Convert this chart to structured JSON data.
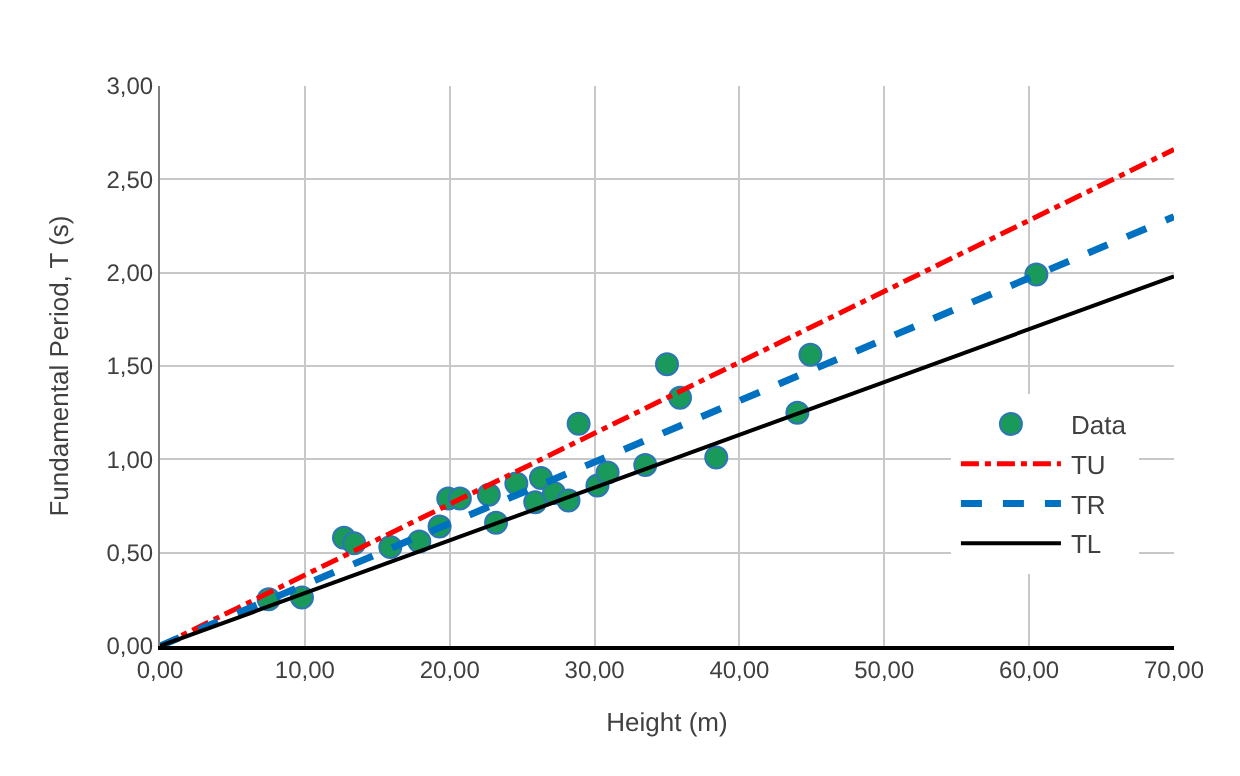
{
  "chart_data": {
    "type": "scatter",
    "xlabel": "Height (m)",
    "ylabel": "Fundamental Period, T (s)",
    "xlim": [
      0,
      70
    ],
    "ylim": [
      0,
      3
    ],
    "xticks": [
      {
        "value": 0,
        "label": "0,00"
      },
      {
        "value": 10,
        "label": "10,00"
      },
      {
        "value": 20,
        "label": "20,00"
      },
      {
        "value": 30,
        "label": "30,00"
      },
      {
        "value": 40,
        "label": "40,00"
      },
      {
        "value": 50,
        "label": "50,00"
      },
      {
        "value": 60,
        "label": "60,00"
      },
      {
        "value": 70,
        "label": "70,00"
      }
    ],
    "yticks": [
      {
        "value": 0,
        "label": "0,00"
      },
      {
        "value": 0.5,
        "label": "0,50"
      },
      {
        "value": 1,
        "label": "1,00"
      },
      {
        "value": 1.5,
        "label": "1,50"
      },
      {
        "value": 2,
        "label": "2,00"
      },
      {
        "value": 2.5,
        "label": "2,50"
      },
      {
        "value": 3,
        "label": "3,00"
      }
    ],
    "grid": true,
    "legend": "right",
    "series": [
      {
        "name": "Data",
        "marker": "circle",
        "color": "#1a9a5a",
        "x": [
          7.5,
          9.8,
          12.7,
          13.4,
          15.9,
          17.9,
          19.3,
          19.9,
          20.7,
          22.7,
          23.2,
          24.6,
          25.9,
          26.3,
          27.2,
          28.2,
          28.9,
          30.2,
          30.9,
          33.5,
          35.0,
          35.9,
          38.4,
          44.0,
          44.9,
          60.5
        ],
        "values": [
          0.25,
          0.26,
          0.58,
          0.55,
          0.53,
          0.56,
          0.64,
          0.79,
          0.79,
          0.81,
          0.66,
          0.87,
          0.77,
          0.9,
          0.82,
          0.78,
          1.19,
          0.86,
          0.93,
          0.97,
          1.51,
          1.33,
          1.01,
          1.25,
          1.56,
          1.99
        ]
      },
      {
        "name": "TU",
        "type": "line",
        "line_style": "dashdot",
        "color": "#ff0000",
        "x": [
          0,
          70
        ],
        "values": [
          0,
          2.66
        ]
      },
      {
        "name": "TR",
        "type": "line",
        "line_style": "dashed",
        "color": "#0070c0",
        "x": [
          0,
          70
        ],
        "values": [
          0,
          2.3
        ]
      },
      {
        "name": "TL",
        "type": "line",
        "line_style": "solid",
        "color": "#000000",
        "x": [
          0,
          70
        ],
        "values": [
          0,
          1.98
        ]
      }
    ]
  }
}
